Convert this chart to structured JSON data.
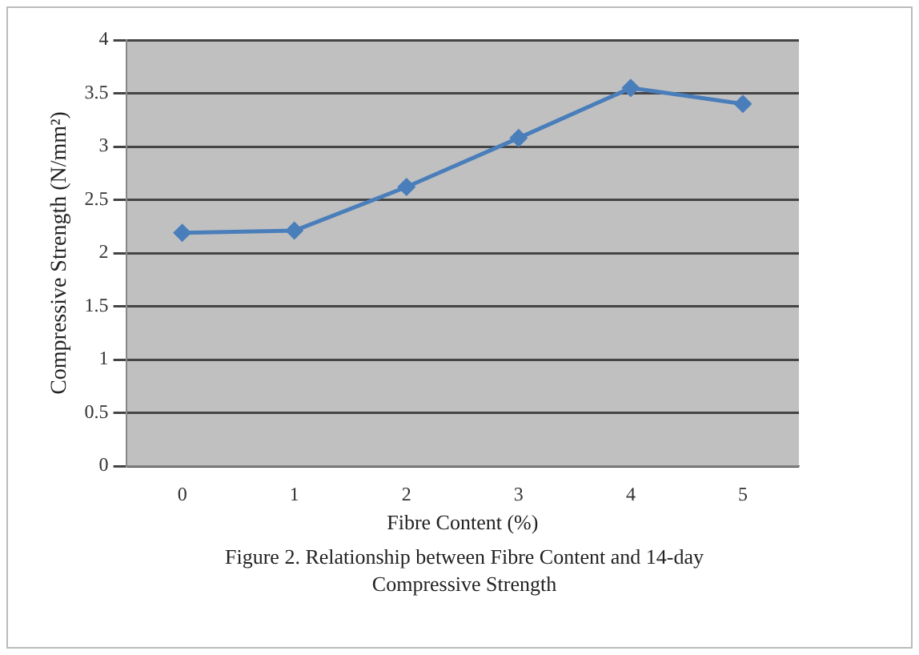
{
  "chart_data": {
    "type": "line",
    "xlabel": "Fibre Content (%)",
    "ylabel": "Compressive Strength (N/mm²)",
    "categories": [
      "0",
      "1",
      "2",
      "3",
      "4",
      "5"
    ],
    "series": [
      {
        "color": "#4a7ebb",
        "values": [
          2.19,
          2.21,
          2.62,
          3.08,
          3.55,
          3.4
        ]
      }
    ],
    "ylim": [
      0,
      4
    ],
    "yticks": [
      0,
      0.5,
      1,
      1.5,
      2,
      2.5,
      3,
      3.5,
      4
    ],
    "grid": "y",
    "legend": false,
    "marker": "diamond",
    "line_style": "solid",
    "annotations": [
      "Figure 2. Relationship between Fibre Content and 14-day Compressive Strength"
    ]
  }
}
